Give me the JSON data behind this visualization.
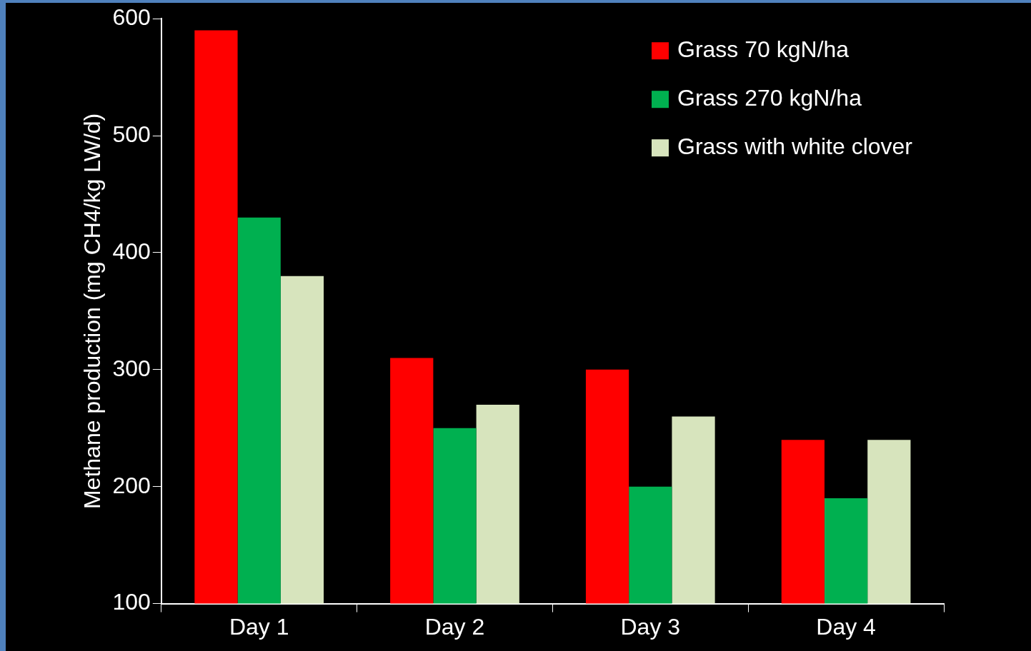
{
  "chart_data": {
    "type": "bar",
    "ylabel": "Methane production (mg CH4/kg LW/d)",
    "categories": [
      "Day 1",
      "Day 2",
      "Day 3",
      "Day 4"
    ],
    "series": [
      {
        "name": "Grass 70 kgN/ha",
        "color": "#ff0000",
        "values": [
          590,
          310,
          300,
          240
        ]
      },
      {
        "name": "Grass 270 kgN/ha",
        "color": "#00b050",
        "values": [
          430,
          250,
          200,
          190
        ]
      },
      {
        "name": "Grass with white clover",
        "color": "#d7e4bd",
        "values": [
          380,
          270,
          260,
          240
        ]
      }
    ],
    "ylim": [
      100,
      600
    ],
    "yticks": [
      100,
      200,
      300,
      400,
      500,
      600
    ],
    "grid": false,
    "legend": "top right"
  }
}
